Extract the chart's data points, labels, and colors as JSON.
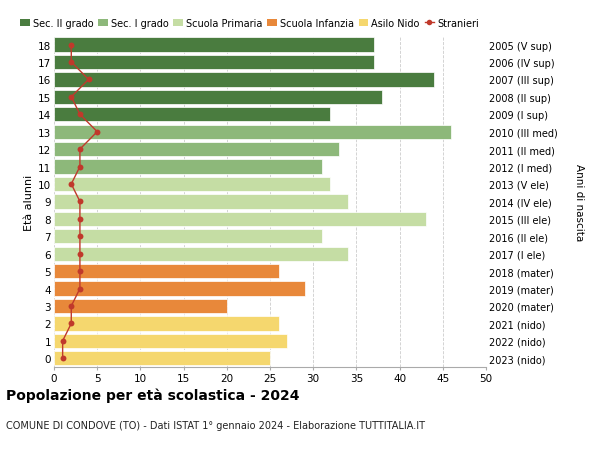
{
  "ages": [
    0,
    1,
    2,
    3,
    4,
    5,
    6,
    7,
    8,
    9,
    10,
    11,
    12,
    13,
    14,
    15,
    16,
    17,
    18
  ],
  "values": [
    25,
    27,
    26,
    20,
    29,
    26,
    34,
    31,
    43,
    34,
    32,
    31,
    33,
    46,
    32,
    38,
    44,
    37,
    37
  ],
  "stranieri": [
    1,
    1,
    2,
    2,
    3,
    3,
    3,
    3,
    3,
    3,
    2,
    3,
    3,
    5,
    3,
    2,
    4,
    2,
    2
  ],
  "right_labels": [
    "2023 (nido)",
    "2022 (nido)",
    "2021 (nido)",
    "2020 (mater)",
    "2019 (mater)",
    "2018 (mater)",
    "2017 (I ele)",
    "2016 (II ele)",
    "2015 (III ele)",
    "2014 (IV ele)",
    "2013 (V ele)",
    "2012 (I med)",
    "2011 (II med)",
    "2010 (III med)",
    "2009 (I sup)",
    "2008 (II sup)",
    "2007 (III sup)",
    "2006 (IV sup)",
    "2005 (V sup)"
  ],
  "bar_colors": [
    "#f5d76e",
    "#f5d76e",
    "#f5d76e",
    "#e8883a",
    "#e8883a",
    "#e8883a",
    "#c5dda4",
    "#c5dda4",
    "#c5dda4",
    "#c5dda4",
    "#c5dda4",
    "#8db87a",
    "#8db87a",
    "#8db87a",
    "#4a7c3f",
    "#4a7c3f",
    "#4a7c3f",
    "#4a7c3f",
    "#4a7c3f"
  ],
  "stranieri_color": "#c0392b",
  "title": "Popolazione per età scolastica - 2024",
  "subtitle": "COMUNE DI CONDOVE (TO) - Dati ISTAT 1° gennaio 2024 - Elaborazione TUTTITALIA.IT",
  "ylabel": "Età alunni",
  "right_ylabel": "Anni di nascita",
  "xlim": [
    0,
    50
  ],
  "background_color": "#ffffff",
  "grid_color": "#cccccc",
  "legend_colors": [
    "#4a7c3f",
    "#8db87a",
    "#c5dda4",
    "#e8883a",
    "#f5d76e"
  ],
  "legend_labels": [
    "Sec. II grado",
    "Sec. I grado",
    "Scuola Primaria",
    "Scuola Infanzia",
    "Asilo Nido"
  ]
}
